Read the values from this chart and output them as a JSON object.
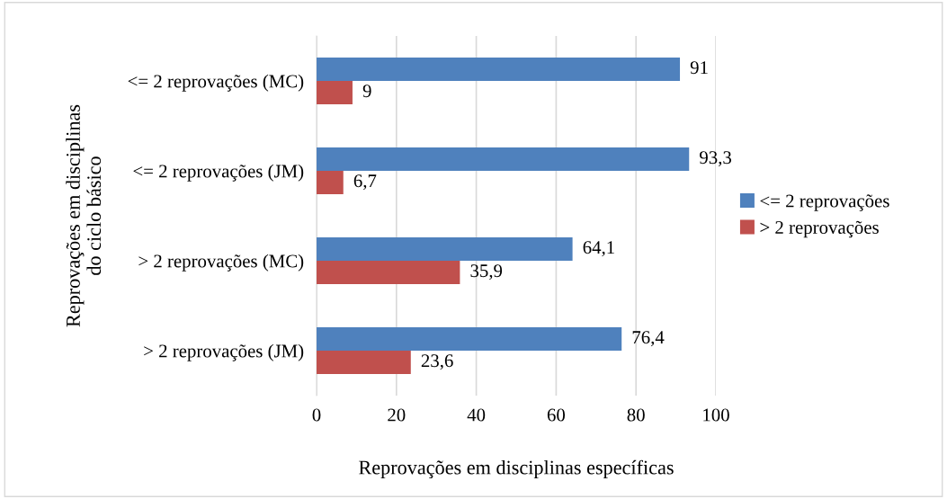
{
  "chart_data": {
    "type": "bar",
    "orientation": "horizontal",
    "categories": [
      "<= 2 reprovações (MC)",
      "<= 2 reprovações (JM)",
      "> 2 reprovações (MC)",
      "> 2 reprovações (JM)"
    ],
    "series": [
      {
        "name": "<= 2 reprovações",
        "color": "#4f81bd",
        "values": [
          91,
          93.3,
          64.1,
          76.4
        ],
        "value_labels": [
          "91",
          "93,3",
          "64,1",
          "76,4"
        ]
      },
      {
        "name": "> 2 reprovações",
        "color": "#c0504d",
        "values": [
          9,
          6.7,
          35.9,
          23.6
        ],
        "value_labels": [
          "9",
          "6,7",
          "35,9",
          "23,6"
        ]
      }
    ],
    "xlim": [
      0,
      100
    ],
    "xticks": [
      0,
      20,
      40,
      60,
      80,
      100
    ],
    "xlabel": "Reprovações em disciplinas específicas",
    "ylabel": "Reprovações em disciplinas\ndo ciclo básico",
    "grid": "x",
    "legend": "right"
  }
}
